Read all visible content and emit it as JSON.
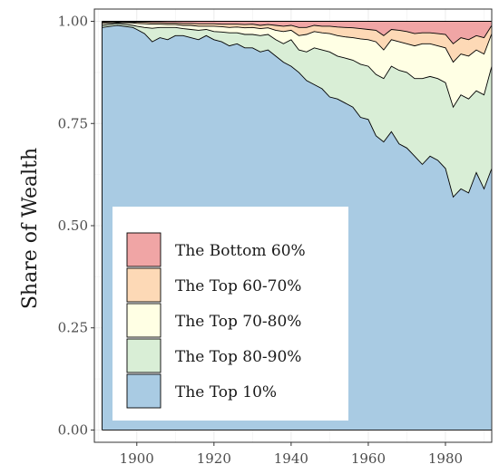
{
  "chart_data": {
    "type": "area",
    "title": "",
    "xlabel": "",
    "ylabel": "Share of Wealth",
    "xlim": [
      1889,
      1992
    ],
    "ylim": [
      -0.03,
      1.03
    ],
    "x_ticks": [
      1900,
      1920,
      1940,
      1960,
      1980
    ],
    "y_ticks": [
      0.0,
      0.25,
      0.5,
      0.75,
      1.0
    ],
    "x_tick_labels": [
      "1900",
      "1920",
      "1940",
      "1960",
      "1980"
    ],
    "y_tick_labels": [
      "0.00",
      "0.25",
      "0.50",
      "0.75",
      "1.00"
    ],
    "grid": true,
    "stacked": true,
    "legend_position": "bottom-left inside",
    "colors": {
      "The Bottom 60%": "#f0a5a5",
      "The Top 60-70%": "#fdd9b6",
      "The Top 70-80%": "#ffffe4",
      "The Top 80-90%": "#d9eed6",
      "The Top 10%": "#a9cbe3"
    },
    "legend_order": [
      "The Bottom 60%",
      "The Top 60-70%",
      "The Top 70-80%",
      "The Top 80-90%",
      "The Top 10%"
    ],
    "x": [
      1891,
      1895,
      1899,
      1900,
      1902,
      1904,
      1906,
      1908,
      1910,
      1912,
      1914,
      1916,
      1918,
      1920,
      1922,
      1924,
      1926,
      1928,
      1930,
      1932,
      1934,
      1936,
      1938,
      1940,
      1942,
      1944,
      1946,
      1948,
      1950,
      1952,
      1954,
      1956,
      1958,
      1960,
      1962,
      1964,
      1966,
      1968,
      1970,
      1972,
      1974,
      1976,
      1978,
      1980,
      1982,
      1984,
      1986,
      1988,
      1990,
      1992
    ],
    "cumulative_tops": {
      "The Top 10%": [
        0.985,
        0.99,
        0.985,
        0.98,
        0.97,
        0.95,
        0.96,
        0.955,
        0.965,
        0.965,
        0.96,
        0.955,
        0.965,
        0.955,
        0.95,
        0.94,
        0.945,
        0.935,
        0.935,
        0.925,
        0.93,
        0.915,
        0.9,
        0.89,
        0.875,
        0.855,
        0.845,
        0.835,
        0.815,
        0.81,
        0.8,
        0.79,
        0.765,
        0.76,
        0.72,
        0.705,
        0.73,
        0.7,
        0.69,
        0.67,
        0.65,
        0.67,
        0.66,
        0.64,
        0.57,
        0.59,
        0.58,
        0.63,
        0.59,
        0.64
      ],
      "The Top 80-90%": [
        0.99,
        0.995,
        0.99,
        0.988,
        0.985,
        0.983,
        0.985,
        0.985,
        0.985,
        0.982,
        0.98,
        0.978,
        0.98,
        0.975,
        0.974,
        0.972,
        0.972,
        0.968,
        0.968,
        0.965,
        0.968,
        0.955,
        0.945,
        0.955,
        0.93,
        0.925,
        0.935,
        0.93,
        0.925,
        0.915,
        0.91,
        0.905,
        0.895,
        0.89,
        0.87,
        0.86,
        0.89,
        0.88,
        0.875,
        0.86,
        0.86,
        0.865,
        0.86,
        0.85,
        0.79,
        0.82,
        0.81,
        0.83,
        0.82,
        0.89
      ],
      "The Top 70-80%": [
        0.995,
        0.997,
        0.996,
        0.995,
        0.994,
        0.993,
        0.993,
        0.992,
        0.992,
        0.99,
        0.99,
        0.988,
        0.988,
        0.988,
        0.987,
        0.985,
        0.986,
        0.984,
        0.985,
        0.982,
        0.984,
        0.978,
        0.975,
        0.978,
        0.965,
        0.968,
        0.975,
        0.972,
        0.97,
        0.965,
        0.962,
        0.96,
        0.957,
        0.955,
        0.95,
        0.93,
        0.955,
        0.95,
        0.945,
        0.94,
        0.945,
        0.945,
        0.94,
        0.935,
        0.9,
        0.92,
        0.915,
        0.93,
        0.92,
        0.97
      ],
      "The Top 60-70%": [
        0.998,
        0.999,
        0.998,
        0.998,
        0.998,
        0.997,
        0.997,
        0.996,
        0.996,
        0.995,
        0.995,
        0.994,
        0.994,
        0.994,
        0.993,
        0.993,
        0.993,
        0.992,
        0.993,
        0.99,
        0.992,
        0.99,
        0.988,
        0.99,
        0.985,
        0.985,
        0.99,
        0.988,
        0.988,
        0.986,
        0.985,
        0.984,
        0.982,
        0.98,
        0.978,
        0.965,
        0.98,
        0.978,
        0.975,
        0.97,
        0.972,
        0.972,
        0.97,
        0.968,
        0.945,
        0.96,
        0.955,
        0.965,
        0.96,
        0.99
      ],
      "The Bottom 60%": [
        1.0,
        1.0,
        1.0,
        1.0,
        1.0,
        1.0,
        1.0,
        1.0,
        1.0,
        1.0,
        1.0,
        1.0,
        1.0,
        1.0,
        1.0,
        1.0,
        1.0,
        1.0,
        1.0,
        1.0,
        1.0,
        1.0,
        1.0,
        1.0,
        1.0,
        1.0,
        1.0,
        1.0,
        1.0,
        1.0,
        1.0,
        1.0,
        1.0,
        1.0,
        1.0,
        1.0,
        1.0,
        1.0,
        1.0,
        1.0,
        1.0,
        1.0,
        1.0,
        1.0,
        1.0,
        1.0,
        1.0,
        1.0,
        1.0,
        1.0
      ]
    }
  }
}
